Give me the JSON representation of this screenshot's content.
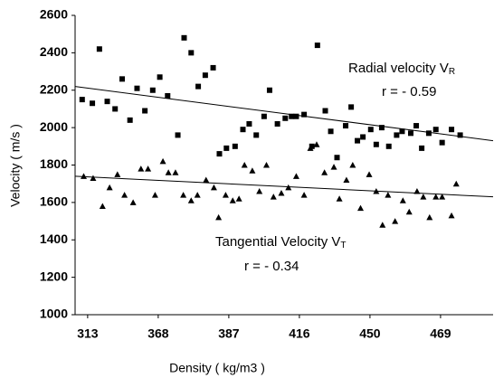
{
  "chart_data": {
    "type": "scatter",
    "x_label": "Density ( kg/m3 )",
    "y_label": "Velocity ( m/s )",
    "xlim": [
      -1.6,
      51.7
    ],
    "ylim": [
      1000,
      2600
    ],
    "xticks": [
      {
        "value": 0,
        "label": "313"
      },
      {
        "value": 9,
        "label": "368"
      },
      {
        "value": 18,
        "label": "387"
      },
      {
        "value": 27,
        "label": "416"
      },
      {
        "value": 36,
        "label": "450"
      },
      {
        "value": 45,
        "label": "469"
      }
    ],
    "yticks": [
      1000,
      1200,
      1400,
      1600,
      1800,
      2000,
      2200,
      2400,
      2600
    ],
    "grid": false,
    "series": [
      {
        "marker": "square",
        "color": "#000000",
        "x": [
          -0.7,
          0.6,
          1.5,
          2.5,
          3.5,
          4.4,
          5.4,
          6.3,
          7.3,
          8.3,
          9.2,
          10.2,
          11.5,
          12.3,
          13.2,
          14.1,
          15.0,
          16.0,
          16.8,
          17.7,
          18.8,
          19.8,
          20.6,
          21.5,
          22.5,
          23.2,
          24.2,
          25.2,
          26.0,
          26.6,
          27.6,
          28.6,
          29.3,
          30.3,
          31.0,
          31.8,
          32.9,
          33.6,
          34.4,
          35.1,
          36.1,
          36.8,
          37.5,
          38.4,
          39.4,
          40.1,
          41.2,
          41.9,
          42.6,
          43.5,
          44.4,
          45.2,
          46.4,
          47.5
        ],
        "values": [
          2150,
          2130,
          2420,
          2140,
          2100,
          2260,
          2040,
          2210,
          2090,
          2200,
          2270,
          2170,
          1960,
          2480,
          2400,
          2220,
          2280,
          2320,
          1860,
          1890,
          1900,
          1990,
          2020,
          1960,
          2060,
          2200,
          2020,
          2050,
          2060,
          2060,
          2070,
          1900,
          2440,
          2090,
          1980,
          1840,
          2010,
          2110,
          1930,
          1950,
          1990,
          1910,
          2000,
          1900,
          1960,
          1980,
          1970,
          2010,
          1890,
          1970,
          1990,
          1920,
          1990,
          1960
        ]
      },
      {
        "marker": "triangle",
        "color": "#000000",
        "x": [
          -0.5,
          0.7,
          1.9,
          2.8,
          3.8,
          4.7,
          5.8,
          6.8,
          7.7,
          8.6,
          9.6,
          10.3,
          11.2,
          12.2,
          13.2,
          14.0,
          15.1,
          16.1,
          16.7,
          17.6,
          18.5,
          19.3,
          20.0,
          21.0,
          21.9,
          22.8,
          23.7,
          24.7,
          25.6,
          26.6,
          27.6,
          28.4,
          29.2,
          30.2,
          31.4,
          32.1,
          33.0,
          33.8,
          34.8,
          35.9,
          36.8,
          37.6,
          38.3,
          39.2,
          40.2,
          41.0,
          42.0,
          42.8,
          43.6,
          44.4,
          45.2,
          46.4,
          47.0
        ],
        "values": [
          1740,
          1730,
          1580,
          1680,
          1750,
          1640,
          1600,
          1780,
          1780,
          1640,
          1820,
          1760,
          1760,
          1640,
          1610,
          1640,
          1720,
          1680,
          1520,
          1640,
          1610,
          1620,
          1800,
          1770,
          1660,
          1800,
          1630,
          1650,
          1680,
          1740,
          1640,
          1890,
          1910,
          1760,
          1790,
          1620,
          1720,
          1800,
          1570,
          1750,
          1660,
          1480,
          1640,
          1500,
          1610,
          1550,
          1660,
          1630,
          1520,
          1630,
          1630,
          1530,
          1700
        ]
      }
    ],
    "trendlines": [
      {
        "x": [
          -1.6,
          51.7
        ],
        "values": [
          2220,
          1930
        ],
        "color": "#000000"
      },
      {
        "x": [
          -1.6,
          51.7
        ],
        "values": [
          1740,
          1630
        ],
        "color": "#000000"
      }
    ],
    "annotations": [
      {
        "text": "Radial velocity V",
        "sub": "R"
      },
      {
        "text": "r = - 0.59"
      },
      {
        "text": "Tangential Velocity V",
        "sub": "T"
      },
      {
        "text": "r = - 0.34"
      }
    ]
  }
}
